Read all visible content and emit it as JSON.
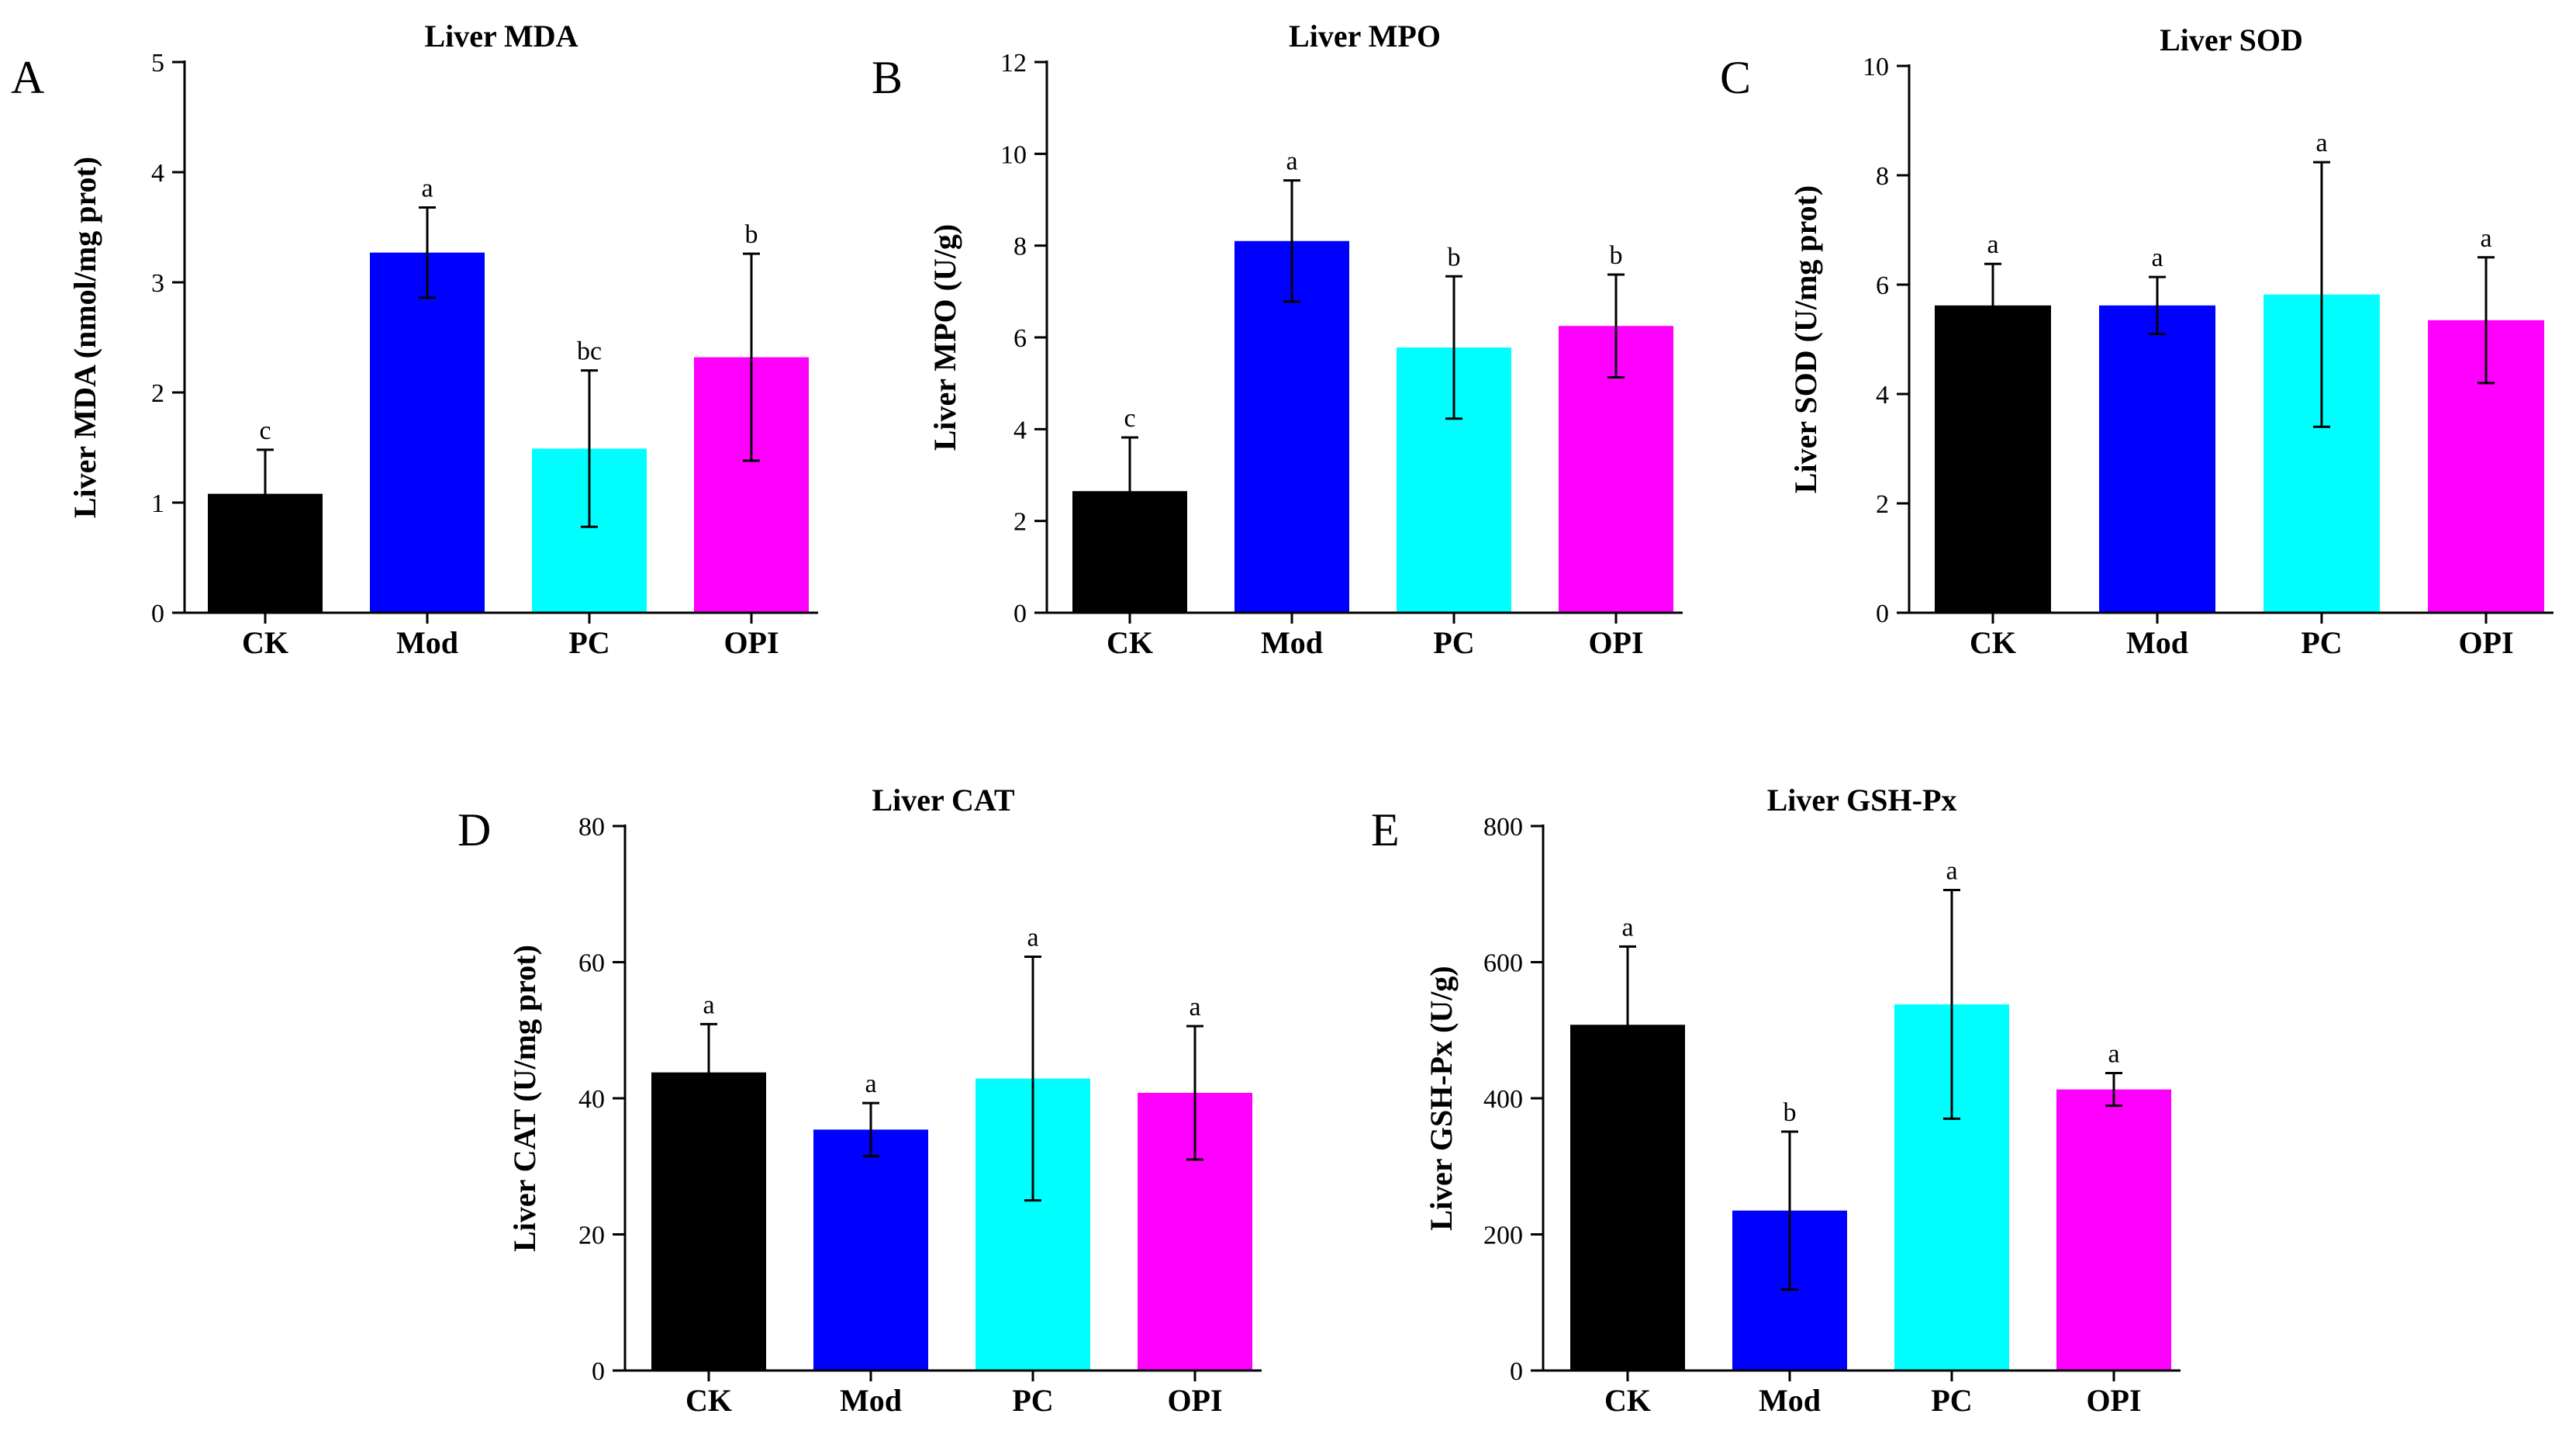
{
  "chart_data": [
    {
      "type": "bar",
      "panel": "A",
      "title": "Liver MDA",
      "ylabel": "Liver MDA (nmol/mg prot)",
      "xlabel": "",
      "categories": [
        "CK",
        "Mod",
        "PC",
        "OPI"
      ],
      "values": [
        1.08,
        3.27,
        1.49,
        2.32
      ],
      "errors": [
        0.4,
        0.41,
        0.71,
        0.94
      ],
      "significance": [
        "c",
        "a",
        "bc",
        "b"
      ],
      "colors": [
        "#000000",
        "#0000ff",
        "#00ffff",
        "#ff00ff"
      ],
      "ylim": [
        0,
        5
      ],
      "yticks": [
        0,
        1,
        2,
        3,
        4,
        5
      ]
    },
    {
      "type": "bar",
      "panel": "B",
      "title": "Liver MPO",
      "ylabel": "Liver MPO (U/g)",
      "xlabel": "",
      "categories": [
        "CK",
        "Mod",
        "PC",
        "OPI"
      ],
      "values": [
        2.65,
        8.1,
        5.78,
        6.25
      ],
      "errors": [
        1.17,
        1.32,
        1.55,
        1.12
      ],
      "significance": [
        "c",
        "a",
        "b",
        "b"
      ],
      "colors": [
        "#000000",
        "#0000ff",
        "#00ffff",
        "#ff00ff"
      ],
      "ylim": [
        0,
        12
      ],
      "yticks": [
        0,
        2,
        4,
        6,
        8,
        10,
        12
      ]
    },
    {
      "type": "bar",
      "panel": "C",
      "title": "Liver SOD",
      "ylabel": "Liver SOD (U/mg prot)",
      "xlabel": "",
      "categories": [
        "CK",
        "Mod",
        "PC",
        "OPI"
      ],
      "values": [
        5.62,
        5.62,
        5.82,
        5.35
      ],
      "errors": [
        0.76,
        0.52,
        2.42,
        1.15
      ],
      "significance": [
        "a",
        "a",
        "a",
        "a"
      ],
      "colors": [
        "#000000",
        "#0000ff",
        "#00ffff",
        "#ff00ff"
      ],
      "ylim": [
        0,
        10
      ],
      "yticks": [
        0,
        2,
        4,
        6,
        8,
        10
      ]
    },
    {
      "type": "bar",
      "panel": "D",
      "title": "Liver CAT",
      "ylabel": "Liver CAT (U/mg prot)",
      "xlabel": "",
      "categories": [
        "CK",
        "Mod",
        "PC",
        "OPI"
      ],
      "values": [
        43.8,
        35.4,
        42.9,
        40.8
      ],
      "errors": [
        7.1,
        3.9,
        17.9,
        9.8
      ],
      "significance": [
        "a",
        "a",
        "a",
        "a"
      ],
      "colors": [
        "#000000",
        "#0000ff",
        "#00ffff",
        "#ff00ff"
      ],
      "ylim": [
        0,
        80
      ],
      "yticks": [
        0,
        20,
        40,
        60,
        80
      ]
    },
    {
      "type": "bar",
      "panel": "E",
      "title": "Liver GSH-Px",
      "ylabel": "Liver GSH-Px (U/g)",
      "xlabel": "",
      "categories": [
        "CK",
        "Mod",
        "PC",
        "OPI"
      ],
      "values": [
        508,
        235,
        538,
        413
      ],
      "errors": [
        115,
        116,
        168,
        24
      ],
      "significance": [
        "a",
        "b",
        "a",
        "a"
      ],
      "colors": [
        "#000000",
        "#0000ff",
        "#00ffff",
        "#ff00ff"
      ],
      "ylim": [
        0,
        800
      ],
      "yticks": [
        0,
        200,
        400,
        600,
        800
      ]
    }
  ]
}
